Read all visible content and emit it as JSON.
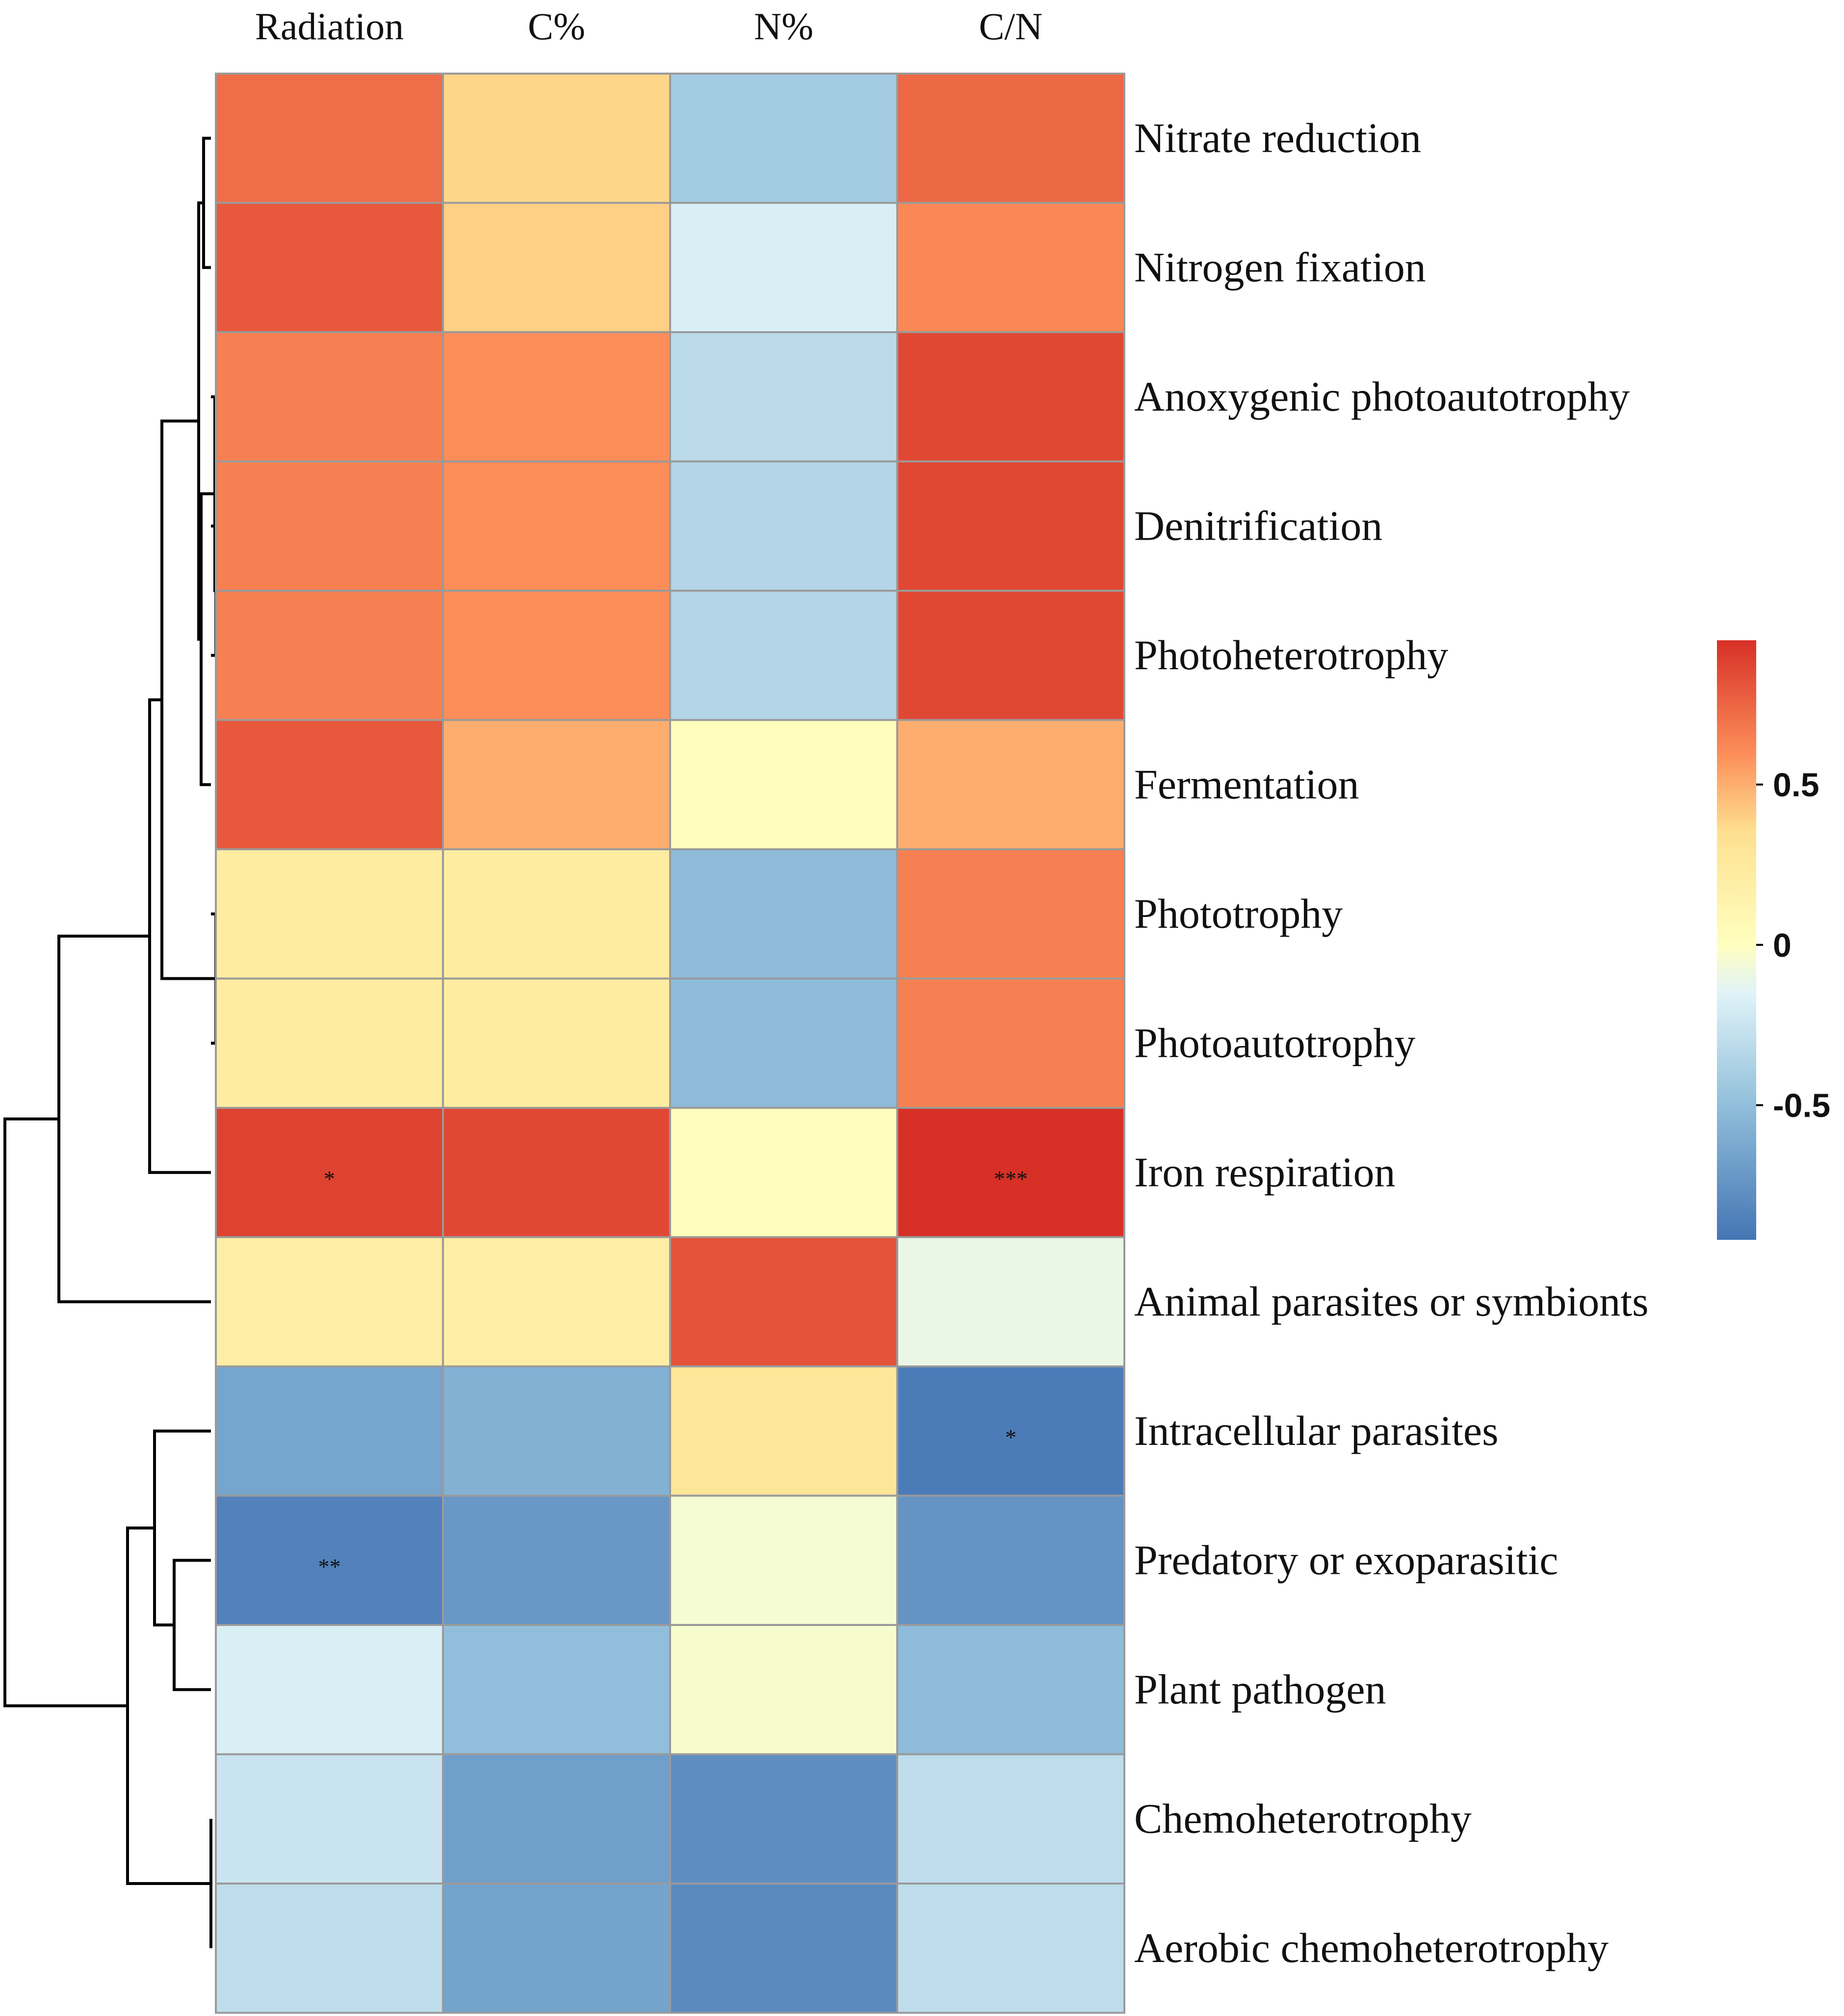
{
  "chart_data": {
    "type": "heatmap",
    "title": "",
    "columns": [
      "Radiation",
      "C%",
      "N%",
      "C/N"
    ],
    "rows": [
      "Nitrate reduction",
      "Nitrogen fixation",
      "Anoxygenic photoautotrophy",
      "Denitrification",
      "Photoheterotrophy",
      "Fermentation",
      "Phototrophy",
      "Photoautotrophy",
      "Iron respiration",
      "Animal parasites or symbionts",
      "Intracellular parasites",
      "Predatory or exoparasitic",
      "Plant pathogen",
      "Chemoheterotrophy",
      "Aerobic chemoheterotrophy"
    ],
    "values": [
      [
        0.72,
        0.38,
        -0.42,
        0.74
      ],
      [
        0.8,
        0.4,
        -0.18,
        0.62
      ],
      [
        0.65,
        0.6,
        -0.32,
        0.86
      ],
      [
        0.65,
        0.6,
        -0.35,
        0.86
      ],
      [
        0.65,
        0.6,
        -0.35,
        0.86
      ],
      [
        0.8,
        0.5,
        0.02,
        0.5
      ],
      [
        0.22,
        0.22,
        -0.52,
        0.65
      ],
      [
        0.22,
        0.22,
        -0.52,
        0.65
      ],
      [
        0.88,
        0.86,
        0.02,
        0.95
      ],
      [
        0.2,
        0.2,
        0.82,
        -0.1
      ],
      [
        -0.65,
        -0.58,
        0.28,
        -0.88
      ],
      [
        -0.85,
        -0.72,
        -0.05,
        -0.75
      ],
      [
        -0.18,
        -0.5,
        -0.04,
        -0.52
      ],
      [
        -0.25,
        -0.68,
        -0.78,
        -0.3
      ],
      [
        -0.3,
        -0.66,
        -0.8,
        -0.3
      ]
    ],
    "significance": [
      [
        "",
        "",
        "",
        ""
      ],
      [
        "",
        "",
        "",
        ""
      ],
      [
        "",
        "",
        "",
        ""
      ],
      [
        "",
        "",
        "",
        ""
      ],
      [
        "",
        "",
        "",
        ""
      ],
      [
        "",
        "",
        "",
        ""
      ],
      [
        "",
        "",
        "",
        ""
      ],
      [
        "",
        "",
        "",
        ""
      ],
      [
        "*",
        "",
        "",
        "***"
      ],
      [
        "",
        "",
        "",
        ""
      ],
      [
        "",
        "",
        "",
        "*"
      ],
      [
        "**",
        "",
        "",
        ""
      ],
      [
        "",
        "",
        "",
        ""
      ],
      [
        "",
        "",
        "",
        ""
      ],
      [
        "",
        "",
        "",
        ""
      ]
    ],
    "color_scale": {
      "min": -0.92,
      "max": 0.95,
      "stops": [
        {
          "value": -0.92,
          "color": "#4575b4"
        },
        {
          "value": -0.5,
          "color": "#91bfdb"
        },
        {
          "value": -0.15,
          "color": "#e0f3f8"
        },
        {
          "value": 0,
          "color": "#ffffbf"
        },
        {
          "value": 0.35,
          "color": "#fee090"
        },
        {
          "value": 0.6,
          "color": "#fc8d59"
        },
        {
          "value": 0.95,
          "color": "#d73027"
        }
      ]
    },
    "legend": {
      "position": "right",
      "ticks": [
        {
          "value": 0.5,
          "label": "0.5"
        },
        {
          "value": 0,
          "label": "0"
        },
        {
          "value": -0.5,
          "label": "-0.5"
        }
      ]
    },
    "row_dendrogram": true
  }
}
